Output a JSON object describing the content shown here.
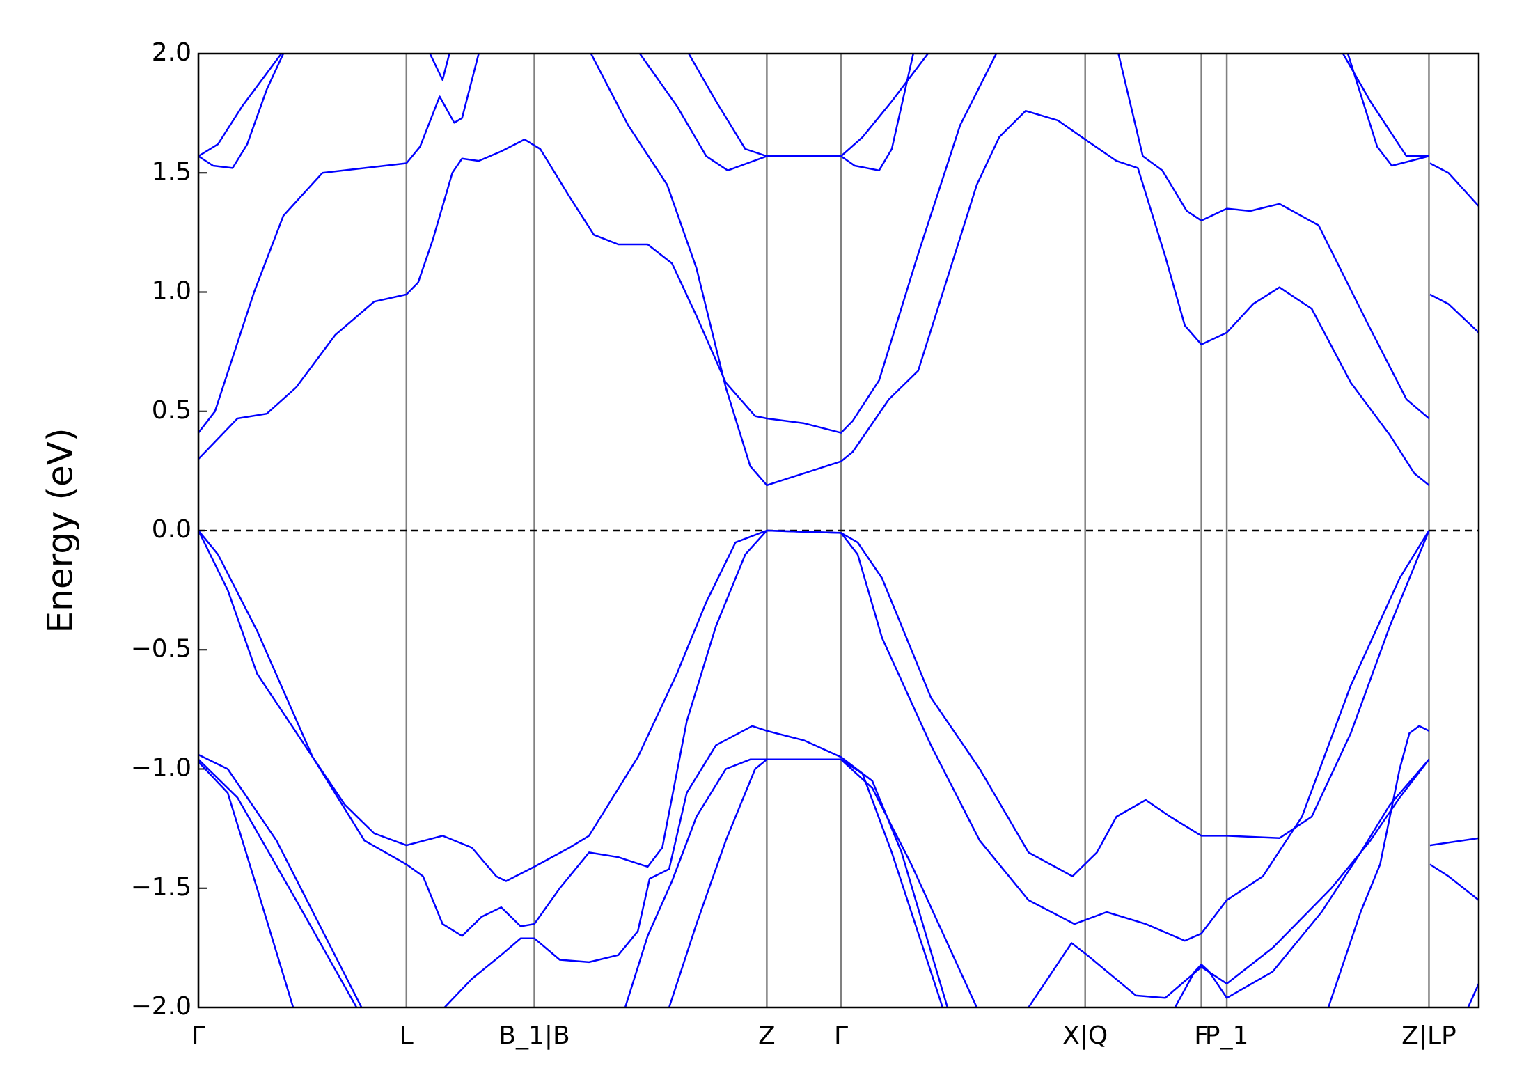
{
  "chart_data": {
    "type": "line",
    "ylabel": "Energy (eV)",
    "color": "#0000ff",
    "xlim": [
      0,
      13.11
    ],
    "ylim": [
      -2.0,
      2.0
    ],
    "yticks": [
      {
        "value": -2.0,
        "label": "−2.0"
      },
      {
        "value": -1.5,
        "label": "−1.5"
      },
      {
        "value": -1.0,
        "label": "−1.0"
      },
      {
        "value": -0.5,
        "label": "−0.5"
      },
      {
        "value": 0.0,
        "label": "0.0"
      },
      {
        "value": 0.5,
        "label": "0.5"
      },
      {
        "value": 1.0,
        "label": "1.0"
      },
      {
        "value": 1.5,
        "label": "1.5"
      },
      {
        "value": 2.0,
        "label": "2.0"
      }
    ],
    "xticks": [
      {
        "value": 0,
        "label": "Γ"
      },
      {
        "value": 2.13,
        "label": "L"
      },
      {
        "value": 3.44,
        "label": "B_1|B"
      },
      {
        "value": 5.82,
        "label": "Z"
      },
      {
        "value": 6.58,
        "label": "Γ"
      },
      {
        "value": 9.08,
        "label": "X|Q"
      },
      {
        "value": 10.27,
        "label": "F"
      },
      {
        "value": 10.53,
        "label": "P_1"
      },
      {
        "value": 12.6,
        "label": "Z|LP"
      }
    ],
    "fermi_level": 0,
    "series": [
      {
        "x": [
          0,
          0.4,
          0.7,
          1.0,
          1.4,
          1.8,
          2.13,
          2.25,
          2.4,
          2.6,
          2.7,
          2.87,
          3.1,
          3.34,
          3.5,
          3.8,
          4.05,
          4.3,
          4.6,
          4.85,
          5.1,
          5.4,
          5.7,
          5.82,
          6.2,
          6.58,
          6.7,
          6.97,
          7.37,
          7.8,
          8.17
        ],
        "values": [
          0.3,
          0.47,
          0.49,
          0.6,
          0.82,
          0.96,
          0.99,
          1.04,
          1.22,
          1.5,
          1.56,
          1.55,
          1.59,
          1.64,
          1.6,
          1.4,
          1.24,
          1.2,
          1.2,
          1.12,
          0.9,
          0.62,
          0.48,
          0.47,
          0.45,
          0.41,
          0.46,
          0.63,
          1.16,
          1.7,
          2.0
        ]
      },
      {
        "x": [
          4.02,
          4.4,
          4.8,
          5.1,
          5.4,
          5.65,
          5.82,
          6.2,
          6.58,
          6.7,
          7.07,
          7.37,
          7.97,
          8.2,
          8.47,
          8.8,
          9.08,
          9.4,
          9.62,
          9.9,
          10.1,
          10.27,
          10.53,
          10.8,
          11.07,
          11.4,
          11.8,
          12.2,
          12.45,
          12.6
        ],
        "values": [
          2.0,
          1.7,
          1.45,
          1.1,
          0.6,
          0.27,
          0.19,
          0.24,
          0.29,
          0.33,
          0.55,
          0.67,
          1.45,
          1.65,
          1.76,
          1.72,
          1.64,
          1.55,
          1.52,
          1.15,
          0.86,
          0.78,
          0.83,
          0.95,
          1.02,
          0.93,
          0.62,
          0.4,
          0.24,
          0.19
        ]
      },
      {
        "x": [
          0,
          0.15,
          0.35,
          0.5,
          0.7,
          0.87
        ],
        "values": [
          1.57,
          1.53,
          1.52,
          1.62,
          1.85,
          2.0
        ]
      },
      {
        "x": [
          0,
          0.2,
          0.45,
          0.85
        ],
        "values": [
          1.57,
          1.62,
          1.78,
          2.0
        ]
      },
      {
        "x": [
          0,
          0.17,
          0.57,
          0.87,
          1.27,
          2.13,
          2.27,
          2.47,
          2.62,
          2.7,
          2.87
        ],
        "values": [
          0.41,
          0.5,
          1.0,
          1.32,
          1.5,
          1.54,
          1.61,
          1.82,
          1.71,
          1.73,
          2.0
        ]
      },
      {
        "x": [
          2.37,
          2.5,
          2.57
        ],
        "values": [
          2.0,
          1.89,
          2.0
        ]
      },
      {
        "x": [
          4.52,
          4.9,
          5.2,
          5.42,
          5.62,
          5.82,
          6.58,
          6.72,
          6.97,
          7.1,
          7.32
        ],
        "values": [
          2.0,
          1.78,
          1.57,
          1.51,
          1.54,
          1.57,
          1.57,
          1.53,
          1.51,
          1.6,
          2.0
        ]
      },
      {
        "x": [
          5.02,
          5.3,
          5.6,
          5.82,
          6.58,
          6.8,
          7.1,
          7.47
        ],
        "values": [
          2.0,
          1.8,
          1.6,
          1.57,
          1.57,
          1.65,
          1.8,
          2.0
        ]
      },
      {
        "x": [
          9.42,
          9.67,
          9.87,
          10.12,
          10.27,
          10.53,
          10.77,
          11.07,
          11.47,
          11.97,
          12.37,
          12.6
        ],
        "values": [
          2.0,
          1.57,
          1.51,
          1.34,
          1.3,
          1.35,
          1.34,
          1.37,
          1.28,
          0.87,
          0.55,
          0.47
        ]
      },
      {
        "x": [
          11.72,
          12.0,
          12.37,
          12.6
        ],
        "values": [
          2.0,
          1.8,
          1.57,
          1.57
        ]
      },
      {
        "x": [
          11.77,
          12.07,
          12.22,
          12.6
        ],
        "values": [
          2.0,
          1.61,
          1.53,
          1.57
        ]
      },
      {
        "x": [
          12.61,
          12.8,
          13.11
        ],
        "values": [
          1.54,
          1.5,
          1.36
        ]
      },
      {
        "x": [
          12.61,
          12.8,
          13.11
        ],
        "values": [
          0.99,
          0.95,
          0.83
        ]
      },
      {
        "x": [
          0,
          0.3,
          0.6,
          1.17,
          1.5,
          1.8,
          2.13,
          2.5,
          2.8,
          3.05,
          3.15,
          3.44,
          3.8,
          4.0,
          4.5,
          4.9,
          5.2,
          5.5,
          5.82,
          6.58,
          6.75,
          7.0,
          7.5,
          8.0,
          8.5,
          8.95,
          9.2,
          9.4,
          9.7,
          9.95,
          10.27,
          10.53,
          11.07,
          11.4,
          11.8,
          12.2,
          12.6
        ],
        "values": [
          0,
          -0.25,
          -0.6,
          -0.95,
          -1.15,
          -1.27,
          -1.32,
          -1.28,
          -1.33,
          -1.45,
          -1.47,
          -1.41,
          -1.33,
          -1.28,
          -0.95,
          -0.6,
          -0.3,
          -0.05,
          0,
          -0.01,
          -0.05,
          -0.2,
          -0.7,
          -1.0,
          -1.35,
          -1.45,
          -1.35,
          -1.2,
          -1.13,
          -1.2,
          -1.28,
          -1.28,
          -1.29,
          -1.2,
          -0.85,
          -0.4,
          0
        ]
      },
      {
        "x": [
          0,
          0.2,
          0.6,
          1.17,
          1.7,
          2.13,
          2.3,
          2.5,
          2.7,
          2.9,
          3.1,
          3.3,
          3.44,
          3.7,
          4.0,
          4.3,
          4.6,
          4.75,
          5.0,
          5.3,
          5.6,
          5.82,
          6.58,
          6.75,
          7.0,
          7.5,
          8.0,
          8.5,
          8.97,
          9.3,
          9.7,
          10.1,
          10.27,
          10.53,
          10.9,
          11.3,
          11.8,
          12.3,
          12.6
        ],
        "values": [
          0,
          -0.1,
          -0.42,
          -0.95,
          -1.3,
          -1.4,
          -1.45,
          -1.65,
          -1.7,
          -1.62,
          -1.58,
          -1.66,
          -1.65,
          -1.5,
          -1.35,
          -1.37,
          -1.41,
          -1.33,
          -0.8,
          -0.4,
          -0.1,
          0,
          -0.01,
          -0.1,
          -0.45,
          -0.9,
          -1.3,
          -1.55,
          -1.65,
          -1.6,
          -1.65,
          -1.72,
          -1.69,
          -1.55,
          -1.45,
          -1.2,
          -0.65,
          -0.2,
          0
        ]
      },
      {
        "x": [
          0,
          0.3,
          0.8,
          1.67
        ],
        "values": [
          -0.94,
          -1.0,
          -1.3,
          -2.0
        ]
      },
      {
        "x": [
          0,
          0.4,
          1.0,
          1.62
        ],
        "values": [
          -0.96,
          -1.12,
          -1.55,
          -2.0
        ]
      },
      {
        "x": [
          0,
          0.3,
          0.6,
          0.97
        ],
        "values": [
          -0.97,
          -1.1,
          -1.5,
          -2.0
        ]
      },
      {
        "x": [
          2.52,
          2.8,
          3.1,
          3.3,
          3.44,
          3.7,
          4.0,
          4.3,
          4.5,
          4.62,
          4.82,
          5.0,
          5.3,
          5.67,
          5.82,
          6.2,
          6.58,
          6.9,
          7.2,
          7.67
        ],
        "values": [
          -2.0,
          -1.88,
          -1.78,
          -1.71,
          -1.71,
          -1.8,
          -1.81,
          -1.78,
          -1.68,
          -1.46,
          -1.42,
          -1.1,
          -0.9,
          -0.82,
          -0.84,
          -0.88,
          -0.95,
          -1.05,
          -1.35,
          -2.0
        ]
      },
      {
        "x": [
          4.37,
          4.6,
          4.85,
          5.1,
          5.4,
          5.65,
          5.82,
          6.58,
          6.9,
          7.3,
          7.97
        ],
        "values": [
          -2.0,
          -1.7,
          -1.47,
          -1.2,
          -1.0,
          -0.96,
          -0.96,
          -0.96,
          -1.08,
          -1.4,
          -2.0
        ]
      },
      {
        "x": [
          4.82,
          5.1,
          5.4,
          5.7,
          5.82,
          6.58,
          6.8,
          7.1,
          7.62
        ],
        "values": [
          -2.0,
          -1.65,
          -1.3,
          -1.0,
          -0.96,
          -0.96,
          -1.02,
          -1.35,
          -2.0
        ]
      },
      {
        "x": [
          8.5,
          8.94,
          9.1,
          9.6,
          9.9,
          10.27,
          10.53,
          11.0,
          11.6,
          12.0,
          12.3,
          12.6
        ],
        "values": [
          -2.0,
          -1.73,
          -1.78,
          -1.95,
          -1.96,
          -1.83,
          -1.9,
          -1.75,
          -1.5,
          -1.3,
          -1.12,
          -0.96
        ]
      },
      {
        "x": [
          10.0,
          10.2,
          10.27,
          10.35,
          10.53,
          11.0,
          11.5,
          11.9,
          12.2,
          12.6
        ],
        "values": [
          -2.0,
          -1.85,
          -1.82,
          -1.85,
          -1.96,
          -1.85,
          -1.6,
          -1.35,
          -1.15,
          -0.96
        ]
      },
      {
        "x": [
          11.57,
          11.9,
          12.1,
          12.3,
          12.4,
          12.5,
          12.6
        ],
        "values": [
          -2.0,
          -1.6,
          -1.4,
          -1.0,
          -0.85,
          -0.82,
          -0.84
        ]
      },
      {
        "x": [
          12.61,
          13.11
        ],
        "values": [
          -1.32,
          -1.29
        ]
      },
      {
        "x": [
          12.61,
          12.8,
          13.11
        ],
        "values": [
          -1.4,
          -1.45,
          -1.55
        ]
      },
      {
        "x": [
          13.0,
          13.11
        ],
        "values": [
          -2.0,
          -1.9
        ]
      }
    ]
  }
}
